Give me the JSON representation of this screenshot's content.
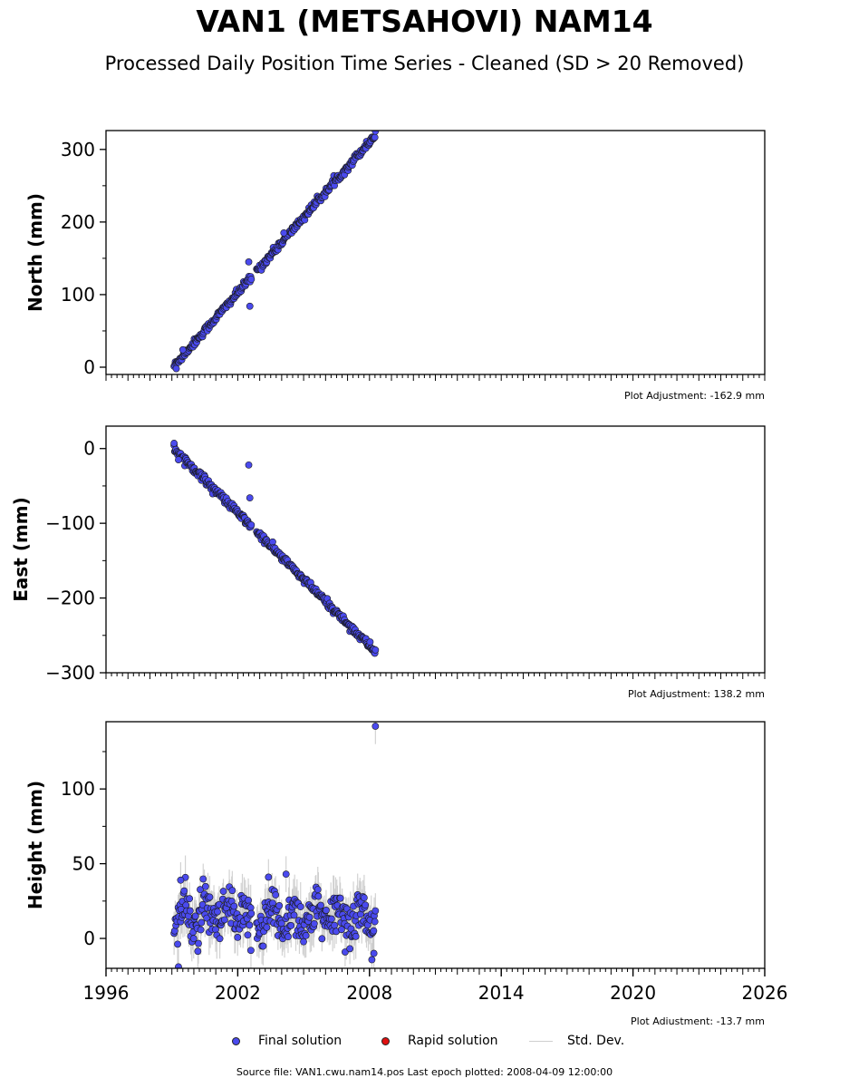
{
  "title": "VAN1 (METSAHOVI) NAM14",
  "subtitle": "Processed Daily Position Time Series - Cleaned (SD > 20 Removed)",
  "legend": {
    "final": "Final solution",
    "rapid": "Rapid solution",
    "std": "Std. Dev."
  },
  "footer": "Source file: VAN1.cwu.nam14.pos  Last epoch plotted: 2008-04-09 12:00:00",
  "colors": {
    "final": "#4a4aee",
    "rapid": "#e01010",
    "std": "#c8c8c8",
    "marker_edge": "#1a1a1a"
  },
  "chart_data": [
    {
      "type": "scatter",
      "panel": "north",
      "title": "",
      "ylabel": "North (mm)",
      "xlim": [
        1996,
        2026
      ],
      "ylim": [
        -10,
        326
      ],
      "yticks": [
        0,
        100,
        200,
        300
      ],
      "yticklabels": [
        "0",
        "100",
        "200",
        "300"
      ],
      "xticklabels": [],
      "adjustment": "Plot Adjustment: -162.9 mm",
      "trend": {
        "x": [
          1999.1,
          2008.27
        ],
        "y": [
          2,
          320
        ]
      },
      "noise_mm": 2.5,
      "sigma_mm": 4,
      "outliers": [
        {
          "x": 2002.5,
          "y": 145
        },
        {
          "x": 2002.55,
          "y": 84
        },
        {
          "x": 1999.5,
          "y": 24
        },
        {
          "x": 2004.1,
          "y": 185
        },
        {
          "x": 1999.2,
          "y": -2
        }
      ],
      "series": [
        {
          "name": "Final solution"
        }
      ]
    },
    {
      "type": "scatter",
      "panel": "east",
      "title": "",
      "ylabel": "East (mm)",
      "xlim": [
        1996,
        2026
      ],
      "ylim": [
        -300,
        30
      ],
      "yticks": [
        0,
        -100,
        -200,
        -300
      ],
      "yticklabels": [
        "0",
        "−100",
        "−200",
        "−300"
      ],
      "xticklabels": [],
      "adjustment": "Plot Adjustment: 138.2 mm",
      "trend": {
        "x": [
          1999.1,
          2008.27
        ],
        "y": [
          0,
          -272
        ]
      },
      "noise_mm": 2.5,
      "sigma_mm": 4,
      "outliers": [
        {
          "x": 2002.5,
          "y": -22
        },
        {
          "x": 2002.55,
          "y": -66
        },
        {
          "x": 1999.1,
          "y": 7
        },
        {
          "x": 1999.3,
          "y": -15
        }
      ],
      "series": [
        {
          "name": "Final solution"
        }
      ]
    },
    {
      "type": "scatter",
      "panel": "height",
      "title": "",
      "ylabel": "Height (mm)",
      "xlabel": "",
      "xlim": [
        1996,
        2026
      ],
      "ylim": [
        -20,
        145
      ],
      "yticks": [
        0,
        50,
        100
      ],
      "yticklabels": [
        "0",
        "50",
        "100"
      ],
      "xticks": [
        1996,
        2002,
        2008,
        2014,
        2020,
        2026
      ],
      "xticklabels": [
        "1996",
        "2002",
        "2008",
        "2014",
        "2020",
        "2026"
      ],
      "adjustment": "Plot Adjustment: -13.7 mm",
      "trend": {
        "x": [
          1999.1,
          2008.27
        ],
        "y": [
          14,
          14
        ]
      },
      "noise_mm": 8,
      "sigma_mm": 12,
      "outliers": [
        {
          "x": 2008.27,
          "y": 142
        },
        {
          "x": 2004.2,
          "y": 43
        },
        {
          "x": 1999.4,
          "y": 39
        },
        {
          "x": 1999.3,
          "y": -19
        },
        {
          "x": 2008.2,
          "y": -10
        },
        {
          "x": 2003.4,
          "y": 41
        },
        {
          "x": 2002.6,
          "y": -8
        }
      ],
      "series": [
        {
          "name": "Final solution"
        }
      ]
    }
  ]
}
